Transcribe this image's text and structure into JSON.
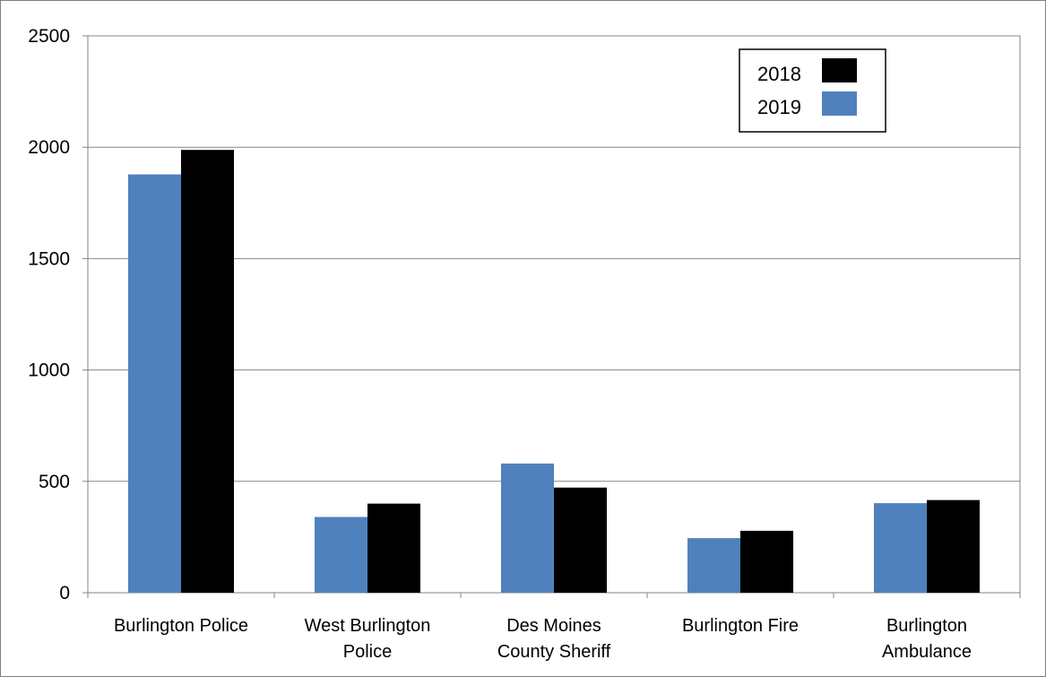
{
  "chart_data": {
    "type": "bar",
    "categories": [
      [
        "Burlington Police"
      ],
      [
        "West Burlington",
        "Police"
      ],
      [
        "Des Moines",
        "County Sheriff"
      ],
      [
        "Burlington Fire"
      ],
      [
        "Burlington",
        "Ambulance"
      ]
    ],
    "series": [
      {
        "name": "2019",
        "color": "#4f81bd",
        "values": [
          1878,
          340,
          580,
          245,
          402
        ]
      },
      {
        "name": "2018",
        "color": "#000000",
        "values": [
          1988,
          400,
          472,
          278,
          416
        ]
      }
    ],
    "legend_order": [
      "2018",
      "2019"
    ],
    "legend_position": "top-right",
    "ylim": [
      0,
      2500
    ],
    "yticks": [
      0,
      500,
      1000,
      1500,
      2000,
      2500
    ],
    "grid": true,
    "title": "",
    "xlabel": "",
    "ylabel": ""
  }
}
